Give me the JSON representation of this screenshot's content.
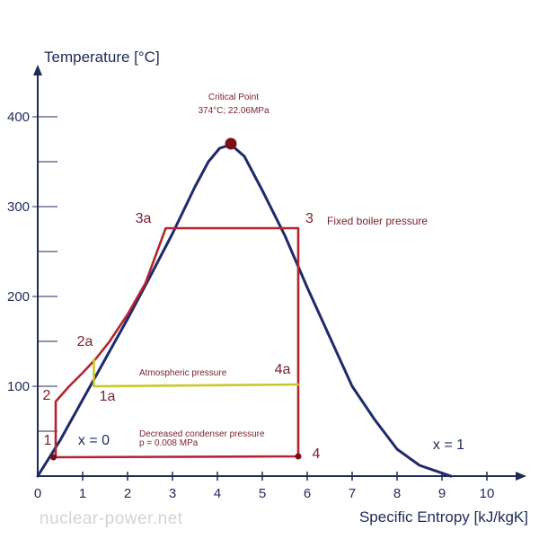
{
  "chart_data": {
    "type": "line",
    "title": "",
    "xlabel": "Specific Entropy [kJ/kgK]",
    "ylabel": "Temperature [°C]",
    "xlim": [
      0,
      10.8
    ],
    "ylim": [
      0,
      440
    ],
    "x_ticks": [
      "0",
      "1",
      "2",
      "3",
      "4",
      "5",
      "6",
      "7",
      "8",
      "9",
      "10"
    ],
    "y_ticks": [
      "100",
      "200",
      "300",
      "400"
    ],
    "y_tick_values": [
      100,
      200,
      300,
      400
    ],
    "minor_y_values": [
      50,
      150,
      250,
      350
    ],
    "grid": false,
    "series": [
      {
        "name": "Saturation dome",
        "color": "#1f2a6b",
        "x": [
          0,
          0.5,
          1.0,
          1.5,
          2.0,
          2.5,
          3.0,
          3.5,
          3.8,
          4.05,
          4.3,
          4.6,
          5.0,
          5.5,
          6.0,
          6.5,
          7.0,
          7.5,
          8.0,
          8.5,
          9.2
        ],
        "y": [
          0,
          40,
          85,
          130,
          175,
          222,
          270,
          322,
          350,
          365,
          369,
          356,
          318,
          268,
          210,
          155,
          100,
          63,
          30,
          12,
          -0.1
        ]
      },
      {
        "name": "Rankine cycle",
        "color": "#b5242e",
        "x": [
          0.35,
          0.4,
          0.4,
          0.7,
          1.0,
          1.3,
          1.6,
          2.0,
          2.4,
          2.85,
          4.0,
          5.8,
          5.8,
          0.35
        ],
        "y": [
          20,
          23,
          83,
          100,
          115,
          131,
          150,
          180,
          215,
          276,
          276,
          276,
          22,
          21
        ]
      },
      {
        "name": "Atmospheric pressure cycle",
        "color": "#c9c72e",
        "x": [
          1.25,
          1.25,
          5.8
        ],
        "y": [
          130,
          100,
          102
        ]
      }
    ],
    "markers": [
      {
        "name": "Critical Point",
        "x": 4.3,
        "y": 370,
        "color": "#7a1118",
        "size": 6.5
      },
      {
        "name": "Point 1",
        "x": 0.35,
        "y": 21,
        "color": "#7a1118",
        "size": 3.5
      },
      {
        "name": "Point 4",
        "x": 5.8,
        "y": 22,
        "color": "#7a1118",
        "size": 3.5
      }
    ],
    "point_labels": [
      {
        "text": "1",
        "x": 0.22,
        "y": 35
      },
      {
        "text": "2",
        "x": 0.2,
        "y": 85
      },
      {
        "text": "2a",
        "x": 1.05,
        "y": 145
      },
      {
        "text": "1a",
        "x": 1.55,
        "y": 84
      },
      {
        "text": "3a",
        "x": 2.35,
        "y": 282
      },
      {
        "text": "3",
        "x": 6.05,
        "y": 282
      },
      {
        "text": "4a",
        "x": 5.45,
        "y": 114
      },
      {
        "text": "4",
        "x": 6.2,
        "y": 20
      }
    ],
    "quality_labels": [
      {
        "text": "x = 0",
        "x": 1.25,
        "y": 35
      },
      {
        "text": "x = 1",
        "x": 9.15,
        "y": 30
      }
    ],
    "annotations": {
      "critical_line1": "Critical Point",
      "critical_line2": "374°C; 22.06MPa",
      "boiler": "Fixed boiler pressure",
      "atmospheric": "Atmospheric pressure",
      "condenser_line1": "Decreased condenser pressure",
      "condenser_line2": "p = 0.008 MPa"
    }
  },
  "watermark": "nuclear-power.net"
}
